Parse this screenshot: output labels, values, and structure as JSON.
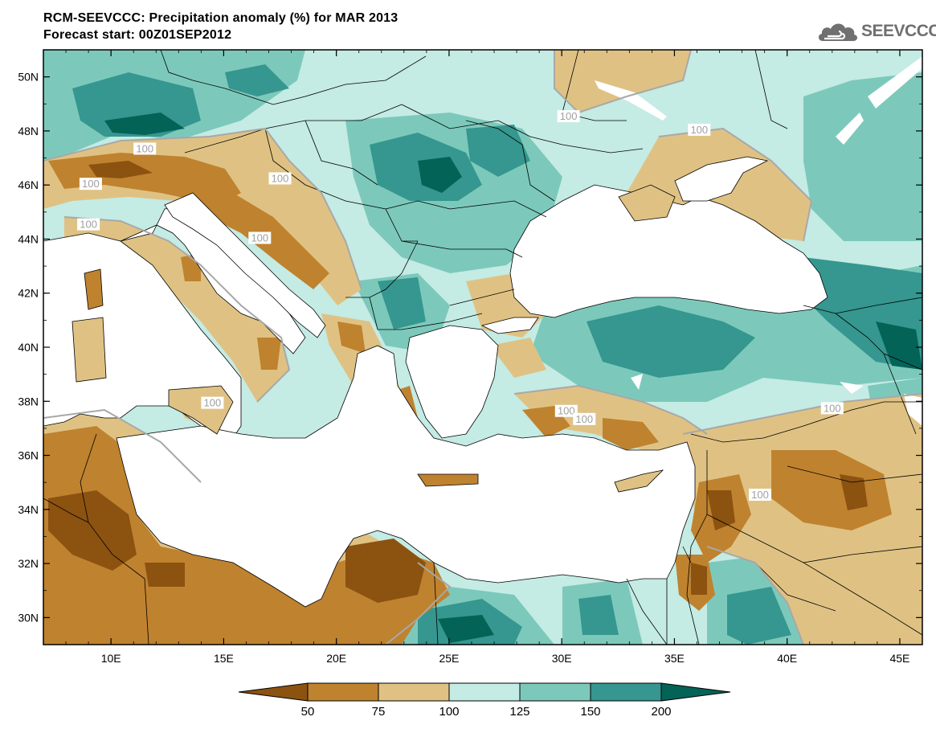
{
  "header": {
    "title_line1": "RCM-SEEVCCC: Precipitation anomaly (%) for MAR 2013",
    "title_line2": "Forecast start: 00Z01SEP2012"
  },
  "logo": {
    "text": "SEEVCCC",
    "icon": "cloud-icon",
    "color": "#6f6f6f"
  },
  "map": {
    "lon_range": [
      7,
      46
    ],
    "lat_range": [
      29,
      51
    ],
    "x_ticks": [
      {
        "value": 10,
        "label": "10E"
      },
      {
        "value": 15,
        "label": "15E"
      },
      {
        "value": 20,
        "label": "20E"
      },
      {
        "value": 25,
        "label": "25E"
      },
      {
        "value": 30,
        "label": "30E"
      },
      {
        "value": 35,
        "label": "35E"
      },
      {
        "value": 40,
        "label": "40E"
      },
      {
        "value": 45,
        "label": "45E"
      }
    ],
    "y_ticks": [
      {
        "value": 30,
        "label": "30N"
      },
      {
        "value": 32,
        "label": "32N"
      },
      {
        "value": 34,
        "label": "34N"
      },
      {
        "value": 36,
        "label": "36N"
      },
      {
        "value": 38,
        "label": "38N"
      },
      {
        "value": 40,
        "label": "40N"
      },
      {
        "value": 42,
        "label": "42N"
      },
      {
        "value": 44,
        "label": "44N"
      },
      {
        "value": 46,
        "label": "46N"
      },
      {
        "value": 48,
        "label": "48N"
      },
      {
        "value": 50,
        "label": "50N"
      }
    ],
    "contour_labels": [
      {
        "text": "100",
        "lon": 11.5,
        "lat": 47.3
      },
      {
        "text": "100",
        "lon": 9.1,
        "lat": 46.0
      },
      {
        "text": "100",
        "lon": 9.0,
        "lat": 44.5
      },
      {
        "text": "100",
        "lon": 17.5,
        "lat": 46.2
      },
      {
        "text": "100",
        "lon": 16.6,
        "lat": 44.0
      },
      {
        "text": "100",
        "lon": 30.3,
        "lat": 48.5
      },
      {
        "text": "100",
        "lon": 36.1,
        "lat": 48.0
      },
      {
        "text": "100",
        "lon": 14.5,
        "lat": 37.9
      },
      {
        "text": "100",
        "lon": 30.2,
        "lat": 37.6
      },
      {
        "text": "100",
        "lon": 31.0,
        "lat": 37.3
      },
      {
        "text": "100",
        "lon": 38.8,
        "lat": 34.5
      },
      {
        "text": "100",
        "lon": 42.0,
        "lat": 37.7
      }
    ]
  },
  "legend": {
    "levels": [
      "50",
      "75",
      "100",
      "125",
      "150",
      "200"
    ],
    "colors": [
      "#8c5210",
      "#bf822f",
      "#dfc283",
      "#c4ebe4",
      "#7cc9bb",
      "#35978f",
      "#036357"
    ]
  }
}
